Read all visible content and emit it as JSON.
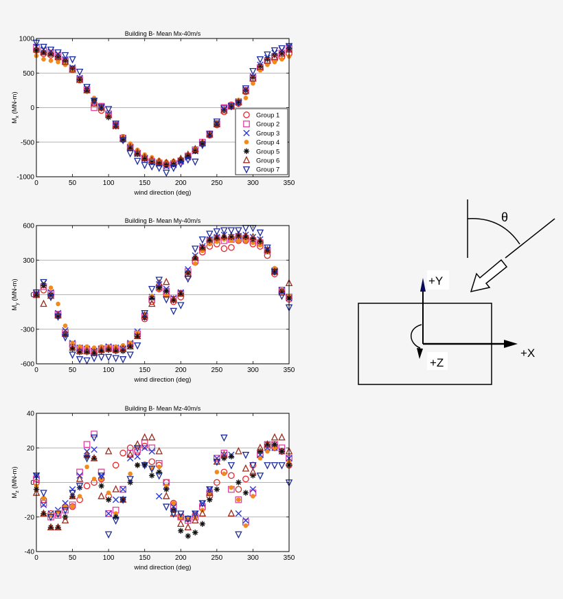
{
  "colors": {
    "background": "#f5f5f5",
    "plot_bg": "#ffffff",
    "g1": "#e8262a",
    "g2": "#e0409a",
    "g3": "#2a3ad8",
    "g4": "#f08a1c",
    "g5": "#111111",
    "g6": "#9c2a1a",
    "g7": "#1a2a9a"
  },
  "legend_labels": [
    "Group 1",
    "Group 2",
    "Group 3",
    "Group 4",
    "Group 5",
    "Group 6",
    "Group 7"
  ],
  "chart_data": [
    {
      "type": "scatter",
      "title": "Building B- Mean Mx-40m/s",
      "xlabel": "wind direction (deg)",
      "ylabel": "M_x (MN-m)",
      "xlim": [
        0,
        350
      ],
      "ylim": [
        -1000,
        1000
      ],
      "xticks": [
        0,
        50,
        100,
        150,
        200,
        250,
        300,
        350
      ],
      "yticks": [
        -1000,
        -500,
        0,
        500,
        1000
      ],
      "grid": "horizontal",
      "legend": "lower-right",
      "x": [
        0,
        10,
        20,
        30,
        40,
        50,
        60,
        70,
        80,
        90,
        100,
        110,
        120,
        130,
        140,
        150,
        160,
        170,
        180,
        190,
        200,
        210,
        220,
        230,
        240,
        250,
        260,
        270,
        280,
        290,
        300,
        310,
        320,
        330,
        340,
        350
      ],
      "series": [
        {
          "name": "Group 1",
          "values": [
            830,
            780,
            760,
            720,
            660,
            550,
            400,
            250,
            60,
            -40,
            -110,
            -260,
            -430,
            -560,
            -650,
            -720,
            -760,
            -790,
            -810,
            -800,
            -760,
            -700,
            -620,
            -520,
            -400,
            -250,
            -60,
            40,
            60,
            230,
            410,
            570,
            660,
            700,
            730,
            780
          ]
        },
        {
          "name": "Group 2",
          "values": [
            870,
            820,
            790,
            750,
            680,
            560,
            410,
            260,
            0,
            20,
            -90,
            -250,
            -440,
            -570,
            -660,
            -730,
            -780,
            -800,
            -830,
            -810,
            -770,
            -700,
            -610,
            -500,
            -380,
            -230,
            0,
            20,
            80,
            250,
            430,
            580,
            680,
            740,
            790,
            860
          ]
        },
        {
          "name": "Group 3",
          "values": [
            880,
            840,
            810,
            770,
            700,
            580,
            430,
            280,
            80,
            10,
            -100,
            -270,
            -450,
            -580,
            -670,
            -740,
            -790,
            -820,
            -850,
            -830,
            -780,
            -720,
            -630,
            -520,
            -390,
            -240,
            -20,
            30,
            90,
            260,
            450,
            620,
            720,
            790,
            830,
            890
          ]
        },
        {
          "name": "Group 4",
          "values": [
            750,
            700,
            680,
            660,
            620,
            530,
            390,
            230,
            140,
            -20,
            -120,
            -280,
            -420,
            -520,
            -610,
            -680,
            -720,
            -760,
            -780,
            -770,
            -740,
            -680,
            -600,
            -500,
            -380,
            -220,
            -40,
            30,
            110,
            140,
            350,
            540,
            620,
            660,
            700,
            740
          ]
        },
        {
          "name": "Group 5",
          "values": [
            830,
            800,
            780,
            740,
            680,
            570,
            410,
            250,
            100,
            -10,
            -140,
            -270,
            -470,
            -590,
            -670,
            -740,
            -790,
            -810,
            -830,
            -820,
            -760,
            -700,
            -630,
            -520,
            -400,
            -240,
            -30,
            10,
            80,
            250,
            440,
            600,
            700,
            760,
            790,
            850
          ]
        },
        {
          "name": "Group 6",
          "values": [
            840,
            800,
            780,
            730,
            660,
            550,
            400,
            250,
            60,
            0,
            -110,
            -260,
            -450,
            -570,
            -650,
            -720,
            -760,
            -780,
            -800,
            -790,
            -740,
            -680,
            -600,
            -510,
            -390,
            -240,
            -40,
            20,
            80,
            240,
            420,
            590,
            680,
            730,
            780,
            840
          ]
        },
        {
          "name": "Group 7",
          "values": [
            940,
            880,
            840,
            800,
            760,
            700,
            520,
            300,
            100,
            10,
            -20,
            -230,
            -470,
            -660,
            -770,
            -830,
            -850,
            -870,
            -940,
            -870,
            -810,
            -750,
            -780,
            -540,
            -380,
            -200,
            -10,
            20,
            70,
            280,
            530,
            700,
            770,
            830,
            860,
            890
          ]
        }
      ]
    },
    {
      "type": "scatter",
      "title": "Building B- Mean My-40m/s",
      "xlabel": "wind direction (deg)",
      "ylabel": "M_y (MN-m)",
      "xlim": [
        0,
        350
      ],
      "ylim": [
        -600,
        600
      ],
      "xticks": [
        0,
        50,
        100,
        150,
        200,
        250,
        300,
        350
      ],
      "yticks": [
        -600,
        -300,
        0,
        300,
        600
      ],
      "grid": "horizontal",
      "legend": "none",
      "x": [
        0,
        10,
        20,
        30,
        40,
        50,
        60,
        70,
        80,
        90,
        100,
        110,
        120,
        130,
        140,
        150,
        160,
        170,
        180,
        190,
        200,
        210,
        220,
        230,
        240,
        250,
        260,
        270,
        280,
        290,
        300,
        310,
        320,
        330,
        340,
        350
      ],
      "series": [
        {
          "name": "Group 1",
          "values": [
            0,
            40,
            -10,
            -180,
            -340,
            -450,
            -480,
            -490,
            -500,
            -480,
            -470,
            -480,
            -470,
            -430,
            -350,
            -210,
            -60,
            50,
            0,
            -60,
            -20,
            160,
            280,
            370,
            420,
            440,
            400,
            410,
            470,
            470,
            440,
            420,
            340,
            180,
            20,
            -40
          ]
        },
        {
          "name": "Group 2",
          "values": [
            0,
            70,
            10,
            -170,
            -330,
            -430,
            -470,
            -480,
            -490,
            -470,
            -460,
            -470,
            -470,
            -430,
            -340,
            -190,
            -40,
            60,
            30,
            -40,
            10,
            200,
            300,
            400,
            470,
            490,
            470,
            480,
            500,
            490,
            470,
            450,
            380,
            200,
            40,
            -20
          ]
        },
        {
          "name": "Group 3",
          "values": [
            10,
            100,
            20,
            -160,
            -310,
            -420,
            -460,
            -470,
            -490,
            -470,
            -450,
            -460,
            -470,
            -420,
            -320,
            -180,
            -20,
            90,
            50,
            -30,
            20,
            220,
            340,
            420,
            480,
            500,
            520,
            500,
            510,
            520,
            500,
            480,
            390,
            210,
            40,
            -30
          ]
        },
        {
          "name": "Group 4",
          "values": [
            0,
            90,
            60,
            -80,
            -270,
            -420,
            -450,
            -450,
            -460,
            -450,
            -450,
            -450,
            -440,
            -420,
            -330,
            -170,
            -10,
            50,
            -10,
            -40,
            0,
            190,
            270,
            380,
            440,
            460,
            480,
            470,
            470,
            470,
            450,
            430,
            370,
            230,
            40,
            -10
          ]
        },
        {
          "name": "Group 5",
          "values": [
            0,
            80,
            0,
            -190,
            -350,
            -470,
            -500,
            -500,
            -510,
            -490,
            -480,
            -490,
            -490,
            -450,
            -360,
            -200,
            -30,
            60,
            30,
            -50,
            10,
            190,
            320,
            410,
            470,
            490,
            500,
            500,
            510,
            500,
            480,
            460,
            380,
            200,
            30,
            -30
          ]
        },
        {
          "name": "Group 6",
          "values": [
            0,
            -80,
            -10,
            -180,
            -340,
            -460,
            -490,
            -490,
            -500,
            -480,
            -470,
            -480,
            -470,
            -450,
            -360,
            -180,
            -80,
            100,
            110,
            -40,
            10,
            180,
            320,
            410,
            480,
            500,
            510,
            510,
            520,
            510,
            500,
            470,
            390,
            200,
            20,
            100
          ]
        },
        {
          "name": "Group 7",
          "values": [
            20,
            110,
            -20,
            -190,
            -370,
            -520,
            -560,
            -570,
            -550,
            -540,
            -540,
            -550,
            -560,
            -520,
            -440,
            -160,
            50,
            130,
            -40,
            -140,
            -90,
            140,
            400,
            480,
            530,
            550,
            560,
            560,
            560,
            580,
            580,
            540,
            410,
            200,
            -10,
            -110
          ]
        }
      ]
    },
    {
      "type": "scatter",
      "title": "Building B- Mean Mz-40m/s",
      "xlabel": "wind direction (deg)",
      "ylabel": "M_z (MN-m)",
      "xlim": [
        0,
        350
      ],
      "ylim": [
        -40,
        40
      ],
      "xticks": [
        0,
        50,
        100,
        150,
        200,
        250,
        300,
        350
      ],
      "yticks": [
        -40,
        -20,
        0,
        20,
        40
      ],
      "grid": "horizontal",
      "legend": "none",
      "x": [
        0,
        10,
        20,
        30,
        40,
        50,
        60,
        70,
        80,
        90,
        100,
        110,
        120,
        130,
        140,
        150,
        160,
        170,
        180,
        190,
        200,
        210,
        220,
        230,
        240,
        250,
        260,
        270,
        280,
        290,
        300,
        310,
        320,
        330,
        340,
        350
      ],
      "series": [
        {
          "name": "Group 1",
          "values": [
            0,
            -10,
            -18,
            -18,
            -14,
            -14,
            -10,
            -2,
            0,
            2,
            -8,
            10,
            17,
            20,
            18,
            21,
            12,
            10,
            0,
            -12,
            -20,
            -21,
            -19,
            -15,
            -8,
            0,
            6,
            4,
            -4,
            2,
            10,
            16,
            20,
            20,
            18,
            10
          ]
        },
        {
          "name": "Group 2",
          "values": [
            2,
            -12,
            -20,
            -19,
            -16,
            -13,
            6,
            22,
            28,
            6,
            -18,
            -16,
            -4,
            17,
            19,
            23,
            20,
            11,
            0,
            -14,
            -20,
            -22,
            -20,
            -14,
            -6,
            14,
            17,
            -4,
            -10,
            -23,
            -6,
            16,
            22,
            22,
            20,
            14
          ]
        },
        {
          "name": "Group 3",
          "values": [
            4,
            -13,
            -18,
            -16,
            -12,
            -4,
            4,
            18,
            19,
            4,
            -18,
            -10,
            -4,
            14,
            15,
            20,
            18,
            -8,
            -2,
            -14,
            -19,
            -21,
            -18,
            -12,
            -4,
            14,
            16,
            16,
            -18,
            -22,
            -4,
            16,
            20,
            20,
            18,
            14
          ]
        },
        {
          "name": "Group 4",
          "values": [
            -2,
            -9,
            -19,
            -17,
            -14,
            -14,
            -8,
            9,
            2,
            2,
            -6,
            -18,
            -10,
            5,
            10,
            11,
            8,
            9,
            -2,
            -12,
            -20,
            -21,
            -20,
            -16,
            -7,
            6,
            5,
            -3,
            -10,
            -25,
            -8,
            14,
            18,
            20,
            18,
            12
          ]
        },
        {
          "name": "Group 5",
          "values": [
            -4,
            -18,
            -26,
            -26,
            -20,
            -8,
            -3,
            15,
            14,
            -2,
            -10,
            -20,
            -10,
            0,
            10,
            10,
            4,
            6,
            -4,
            -16,
            -28,
            -31,
            -29,
            -24,
            -10,
            -4,
            14,
            15,
            0,
            -6,
            4,
            18,
            22,
            22,
            18,
            10
          ]
        },
        {
          "name": "Group 6",
          "values": [
            -6,
            -18,
            -26,
            -26,
            -22,
            -8,
            2,
            16,
            14,
            -8,
            18,
            -4,
            -10,
            16,
            22,
            26,
            26,
            18,
            -8,
            -18,
            -24,
            -26,
            -22,
            -18,
            -6,
            12,
            16,
            -18,
            18,
            8,
            6,
            20,
            22,
            26,
            26,
            18
          ]
        },
        {
          "name": "Group 7",
          "values": [
            4,
            -6,
            -20,
            -18,
            -16,
            -6,
            -2,
            14,
            26,
            4,
            -30,
            -22,
            -10,
            2,
            20,
            10,
            8,
            4,
            -14,
            -18,
            -18,
            -21,
            -18,
            -12,
            -4,
            12,
            26,
            10,
            -30,
            16,
            10,
            4,
            10,
            10,
            10,
            0
          ]
        }
      ]
    }
  ],
  "diagram": {
    "theta_label": "θ",
    "y_axis_label": "+Y",
    "x_axis_label": "+X",
    "z_axis_label": "+Z"
  }
}
